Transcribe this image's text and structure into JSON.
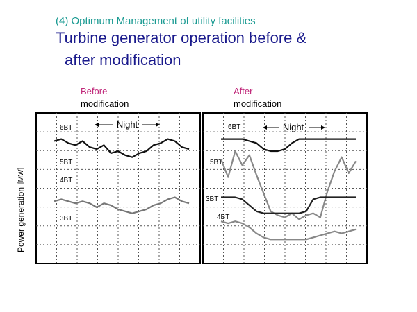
{
  "slide": {
    "subtitle": "(4) Optimum Management of utility facilities",
    "title_line1": "Turbine generator operation before &",
    "title_line2": "after modification"
  },
  "y_axis": {
    "label": "Power generation",
    "unit": "[MW]"
  },
  "chart_data": [
    {
      "type": "line",
      "panel_label_top": "Before",
      "panel_label_bottom": "modification",
      "annotation": "Night",
      "bands": [
        "6BT",
        "5BT",
        "4BT",
        "3BT"
      ],
      "grid": true,
      "series": [
        {
          "name": "5BT",
          "color": "#111111",
          "values": [
            6.1,
            6.2,
            6.0,
            5.9,
            6.1,
            5.8,
            5.7,
            5.9,
            5.5,
            5.6,
            5.4,
            5.3,
            5.5,
            5.6,
            5.9,
            6.0,
            6.2,
            6.1,
            5.8,
            5.7
          ]
        },
        {
          "name": "3BT",
          "color": "#777777",
          "values": [
            3.1,
            3.2,
            3.1,
            3.0,
            3.1,
            3.0,
            2.8,
            3.0,
            2.9,
            2.7,
            2.6,
            2.5,
            2.6,
            2.7,
            2.9,
            3.0,
            3.2,
            3.3,
            3.1,
            3.0
          ]
        }
      ]
    },
    {
      "type": "line",
      "panel_label_top": "After",
      "panel_label_bottom": "modification",
      "annotation": "Night",
      "bands": [
        "6BT",
        "5BT",
        "3BT",
        "4BT"
      ],
      "grid": true,
      "series": [
        {
          "name": "6BT",
          "color": "#111111",
          "values": [
            6.2,
            6.2,
            6.2,
            6.2,
            6.1,
            6.0,
            5.7,
            5.6,
            5.6,
            5.7,
            6.0,
            6.2,
            6.2,
            6.2,
            6.2,
            6.2,
            6.2,
            6.2,
            6.2,
            6.2
          ]
        },
        {
          "name": "5BT",
          "color": "#888888",
          "values": [
            5.2,
            4.3,
            5.6,
            4.9,
            5.4,
            4.4,
            3.5,
            2.6,
            2.4,
            2.3,
            2.5,
            2.2,
            2.4,
            2.5,
            2.3,
            3.6,
            4.6,
            5.3,
            4.5,
            5.1
          ]
        },
        {
          "name": "3BT",
          "color": "#222222",
          "values": [
            3.3,
            3.3,
            3.3,
            3.2,
            2.9,
            2.6,
            2.5,
            2.5,
            2.5,
            2.5,
            2.5,
            2.5,
            2.6,
            3.2,
            3.3,
            3.3,
            3.3,
            3.3,
            3.3,
            3.3
          ]
        },
        {
          "name": "4BT",
          "color": "#888888",
          "values": [
            2.1,
            2.0,
            2.1,
            2.0,
            1.8,
            1.5,
            1.3,
            1.2,
            1.2,
            1.2,
            1.2,
            1.2,
            1.2,
            1.3,
            1.4,
            1.5,
            1.6,
            1.5,
            1.6,
            1.7
          ]
        }
      ]
    }
  ]
}
